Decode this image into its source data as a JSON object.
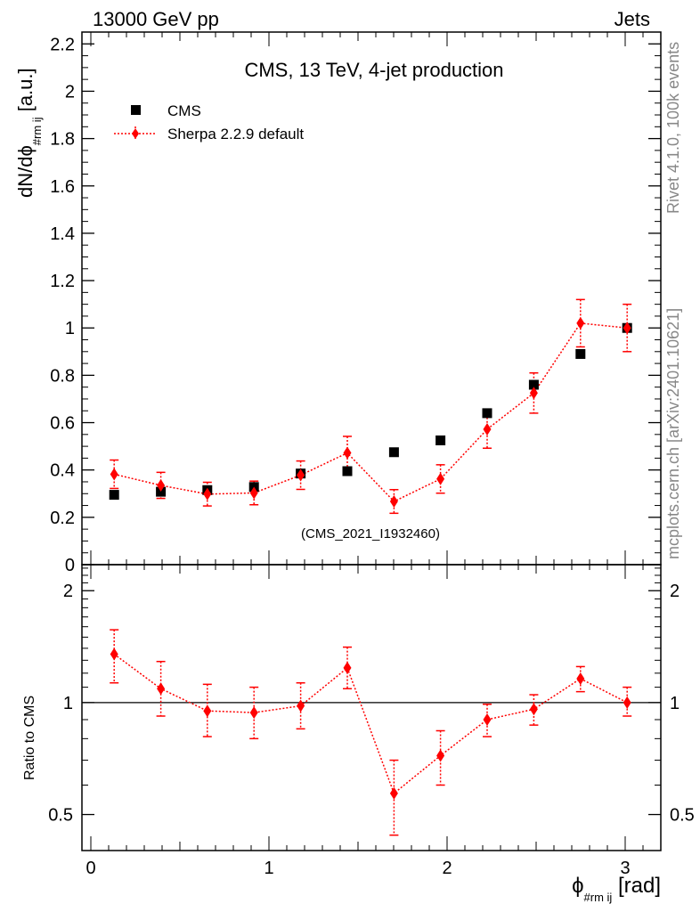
{
  "header": {
    "left": "13000 GeV pp",
    "right": "Jets"
  },
  "side_labels": {
    "rivet": "Rivet 4.1.0,  100k events",
    "mcplots": "mcplots.cern.ch [arXiv:2401.10621]"
  },
  "colors": {
    "data": "#000000",
    "mc": "#ff0000",
    "watermark": "#999999",
    "side_text": "#888888"
  },
  "chart_data": [
    {
      "type": "scatter",
      "panel": "main",
      "title": "CMS, 13 TeV, 4-jet production",
      "watermark": "(CMS_2021_I1932460)",
      "ylabel_main": "dN/dϕ",
      "ylabel_sub": "#rm ij",
      "ylabel_unit": "[a.u.]",
      "ylim": [
        0,
        2.25
      ],
      "yticks": [
        0,
        0.2,
        0.4,
        0.6,
        0.8,
        1,
        1.2,
        1.4,
        1.6,
        1.8,
        2,
        2.2
      ],
      "ytick_labels": [
        "0",
        "0.2",
        "0.4",
        "0.6",
        "0.8",
        "1",
        "1.2",
        "1.4",
        "1.6",
        "1.8",
        "2",
        "2.2"
      ],
      "xlim": [
        -0.05,
        3.2
      ],
      "x": [
        0.131,
        0.393,
        0.654,
        0.916,
        1.178,
        1.44,
        1.702,
        1.963,
        2.225,
        2.487,
        2.749,
        3.011
      ],
      "series": [
        {
          "name": "CMS",
          "marker": "square",
          "values": [
            0.295,
            0.308,
            0.315,
            0.328,
            0.385,
            0.395,
            0.475,
            0.525,
            0.64,
            0.76,
            0.89,
            1.0
          ]
        },
        {
          "name": "Sherpa 2.2.9 default",
          "marker": "diamond",
          "values": [
            0.382,
            0.335,
            0.298,
            0.303,
            0.378,
            0.472,
            0.267,
            0.362,
            0.572,
            0.725,
            1.02,
            1.0
          ],
          "errors": [
            0.06,
            0.055,
            0.05,
            0.05,
            0.06,
            0.07,
            0.05,
            0.06,
            0.08,
            0.085,
            0.1,
            0.1
          ]
        }
      ]
    },
    {
      "type": "scatter",
      "panel": "ratio",
      "ylabel": "Ratio to CMS",
      "ylim": [
        0.4,
        2.35
      ],
      "yscale": "log",
      "yticks": [
        0.5,
        1,
        2
      ],
      "ytick_labels": [
        "0.5",
        "1",
        "2"
      ],
      "xlim": [
        -0.05,
        3.2
      ],
      "xticks": [
        0,
        1,
        2,
        3
      ],
      "xtick_labels": [
        "0",
        "1",
        "2",
        "3"
      ],
      "xlabel": "ϕ",
      "xlabel_sub": "#rm ij",
      "xlabel_unit": "[rad]",
      "x": [
        0.131,
        0.393,
        0.654,
        0.916,
        1.178,
        1.44,
        1.702,
        1.963,
        2.225,
        2.487,
        2.749,
        3.011
      ],
      "reference": 1.0,
      "series": [
        {
          "name": "Sherpa 2.2.9 default",
          "values": [
            1.35,
            1.09,
            0.95,
            0.94,
            0.98,
            1.24,
            0.57,
            0.72,
            0.9,
            0.96,
            1.16,
            1.0
          ],
          "err_up": [
            0.22,
            0.2,
            0.17,
            0.16,
            0.15,
            0.17,
            0.13,
            0.12,
            0.09,
            0.09,
            0.09,
            0.1
          ],
          "err_down": [
            0.22,
            0.17,
            0.14,
            0.14,
            0.13,
            0.15,
            0.13,
            0.12,
            0.09,
            0.09,
            0.09,
            0.08
          ]
        }
      ]
    }
  ]
}
